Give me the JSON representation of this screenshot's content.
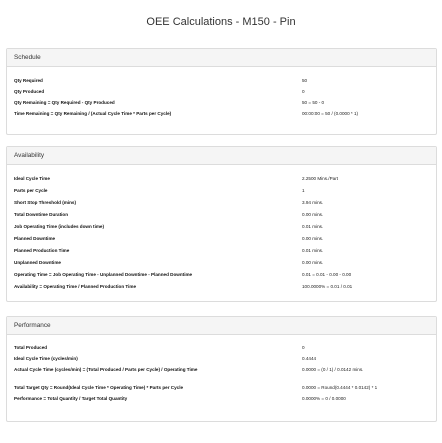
{
  "page_title": "OEE Calculations - M150 - Pin",
  "schedule": {
    "heading": "Schedule",
    "rows": [
      {
        "label": "Qty Required",
        "value": "50"
      },
      {
        "label": "Qty Produced",
        "value": "0"
      },
      {
        "label": "Qty Remaining = Qty Required - Qty Produced",
        "value": "50 = 50 - 0"
      },
      {
        "label": "Time Remaining = Qty Remaining / (Actual Cycle Time * Parts per Cycle)",
        "value": "00:00:00 = 50 / (0.0000 * 1)"
      }
    ]
  },
  "availability": {
    "heading": "Availability",
    "rows": [
      {
        "label": "Ideal Cycle Time",
        "value": "2.2500 Mins./Part"
      },
      {
        "label": "Parts per Cycle",
        "value": "1"
      },
      {
        "label": "Short Stop Threshold (mins)",
        "value": "3.94 mins."
      },
      {
        "label": "Total Downtime Duration",
        "value": "0.00 mins."
      },
      {
        "label": "Job Operating Time (includes down time)",
        "value": "0.01 mins."
      },
      {
        "label": "Planned Downtime",
        "value": "0.00 mins."
      },
      {
        "label": "Planned Production Time",
        "value": "0.01 mins."
      },
      {
        "label": "Unplanned Downtime",
        "value": "0.00 mins."
      },
      {
        "label": "Operating Time = Job Operating Time - Unplanned Downtime - Planned Downtime",
        "value": "0.01 = 0.01 - 0.00 - 0.00"
      },
      {
        "label": "Availability = Operating Time / Planned Production Time",
        "value": "100.0000% = 0.01 / 0.01"
      }
    ]
  },
  "performance": {
    "heading": "Performance",
    "rows": [
      {
        "label": "Total Produced",
        "value": "0"
      },
      {
        "label": "Ideal Cycle Time (cycles/min)",
        "value": "0.4444"
      },
      {
        "label": "Actual Cycle Time (cycles/min) = (Total Produced / Parts per Cycle) / Operating Time",
        "value": "0.0000 = (0 / 1) / 0.0142 mins."
      },
      {
        "label": "Total Target Qty = Round(Ideal Cycle Time * Operating Time) * Parts per Cycle",
        "value": "0.0000 = Round(0.4444 * 0.0142) * 1"
      },
      {
        "label": "Performance = Total Quantity / Target Total Quantity",
        "value": "0.0000% = 0 / 0.0000"
      }
    ]
  }
}
